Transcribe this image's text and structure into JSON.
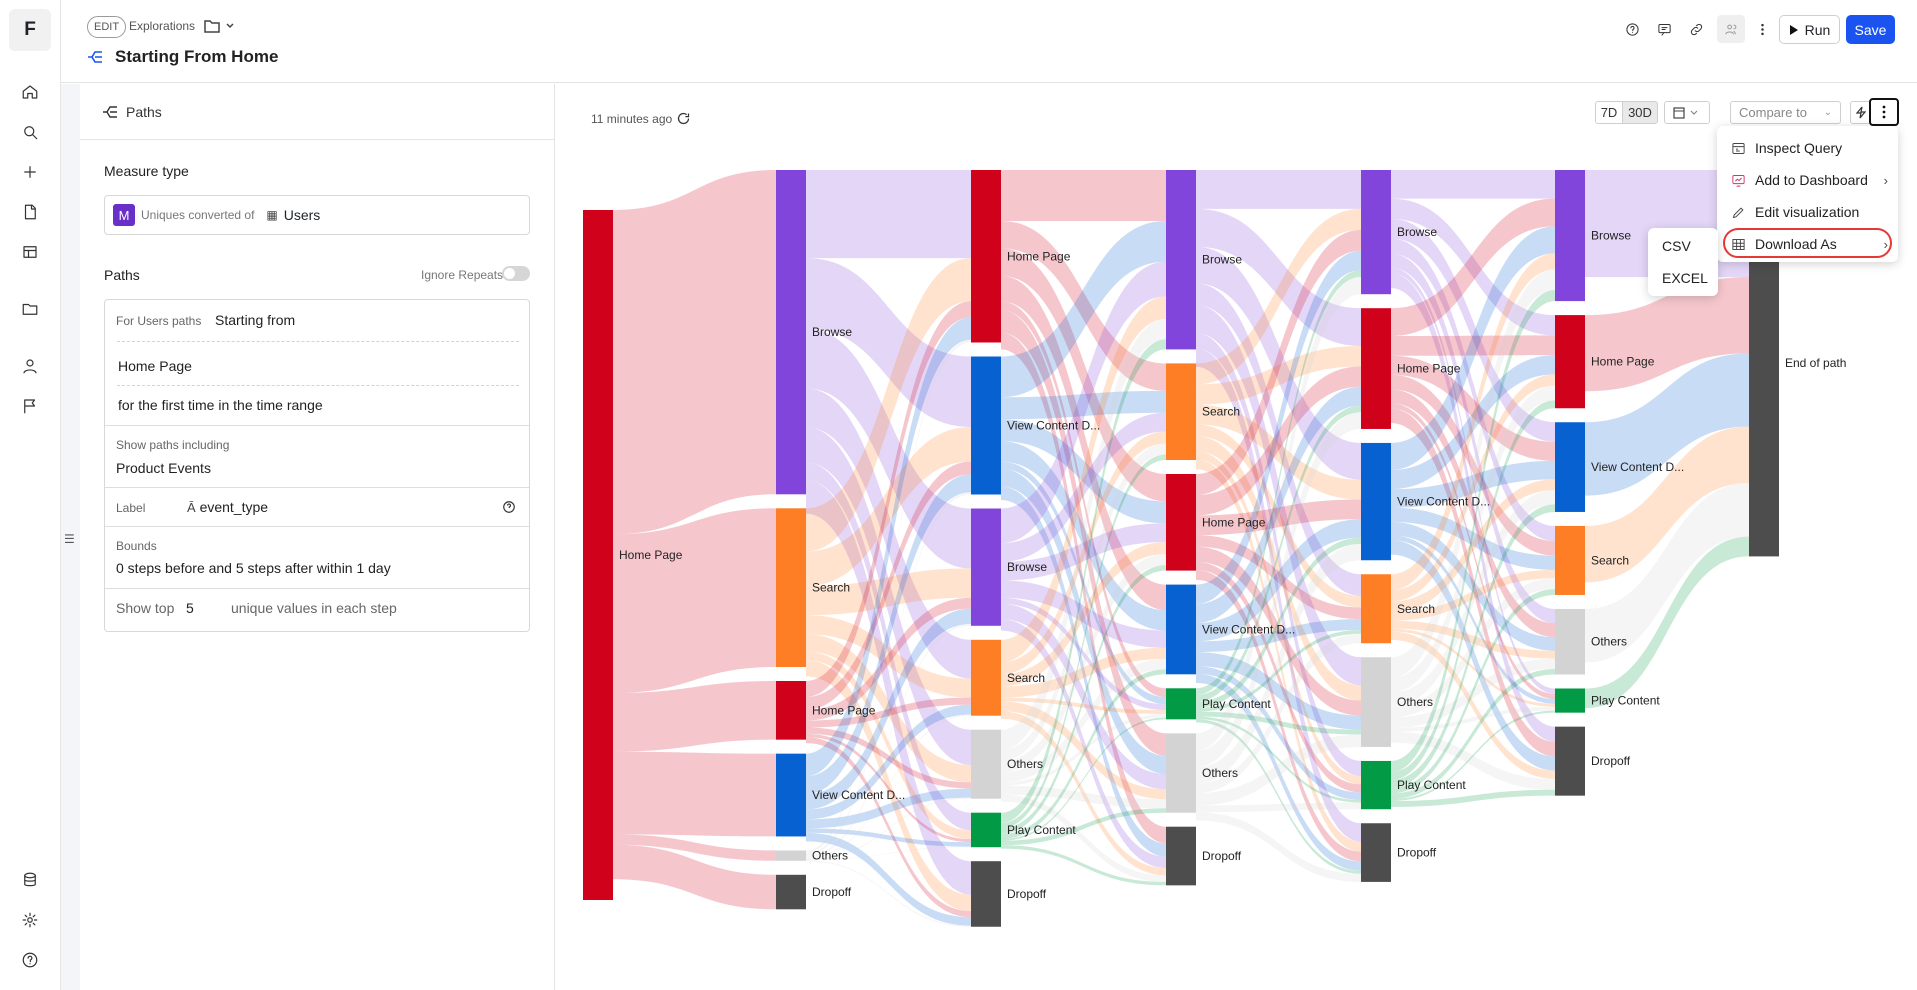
{
  "rail": {
    "logo": "F",
    "items": [
      "home-icon",
      "search-icon",
      "plus-icon",
      "document-icon",
      "board-icon",
      "folder-icon",
      "person-icon",
      "flag-icon"
    ],
    "bottom_items": [
      "database-icon",
      "gear-icon",
      "help-icon"
    ]
  },
  "header": {
    "edit_badge": "EDIT",
    "breadcrumb": "Explorations",
    "title": "Starting From Home",
    "run_label": "Run",
    "save_label": "Save"
  },
  "panel": {
    "header": "Paths",
    "measure_type_title": "Measure type",
    "measure_badge": "M",
    "measure_prefix": "Uniques converted of",
    "measure_value": "Users",
    "paths_title": "Paths",
    "ignore_repeats": "Ignore Repeats",
    "for_users_paths": "For Users paths",
    "starting_from": "Starting from",
    "start_event": "Home Page",
    "time_qualifier": "for the first time in the time range",
    "show_paths_including": "Show paths including",
    "product_events": "Product Events",
    "label_caption": "Label",
    "label_value": "event_type",
    "bounds_caption": "Bounds",
    "bounds_value": "0 steps before and 5 steps after within 1 day",
    "show_top_label": "Show top",
    "show_top_value": "5",
    "show_top_suffix": "unique values in each step"
  },
  "toolbar": {
    "updated": "11 minutes ago",
    "range_7d": "7D",
    "range_30d": "30D",
    "active_range": "30D",
    "compare_placeholder": "Compare to"
  },
  "menu": {
    "items": [
      "Inspect Query",
      "Add to Dashboard",
      "Edit visualization",
      "Download As"
    ],
    "submenu": [
      "CSV",
      "EXCEL"
    ]
  },
  "colors": {
    "Home Page": "#d0021b",
    "Browse": "#8245db",
    "Search": "#fd7e24",
    "View Content D...": "#0761d1",
    "Others": "#d3d3d3",
    "Play Content": "#029a45",
    "Dropoff": "#4d4d4d",
    "End of path": "#4d4d4d"
  },
  "chart_data": {
    "type": "sankey",
    "steps": [
      [
        {
          "label": "Home Page",
          "value": 100
        }
      ],
      [
        {
          "label": "Browse",
          "value": 47
        },
        {
          "label": "Search",
          "value": 23
        },
        {
          "label": "Home Page",
          "value": 8.5
        },
        {
          "label": "View Content D...",
          "value": 12
        },
        {
          "label": "Others",
          "value": 1.5
        },
        {
          "label": "Dropoff",
          "value": 5
        }
      ],
      [
        {
          "label": "Home Page",
          "value": 25
        },
        {
          "label": "View Content D...",
          "value": 20
        },
        {
          "label": "Browse",
          "value": 17
        },
        {
          "label": "Search",
          "value": 11
        },
        {
          "label": "Others",
          "value": 10
        },
        {
          "label": "Play Content",
          "value": 5
        },
        {
          "label": "Dropoff",
          "value": 9.5
        }
      ],
      [
        {
          "label": "Browse",
          "value": 26
        },
        {
          "label": "Search",
          "value": 14
        },
        {
          "label": "Home Page",
          "value": 14
        },
        {
          "label": "View Content D...",
          "value": 13
        },
        {
          "label": "Play Content",
          "value": 4.5
        },
        {
          "label": "Others",
          "value": 11.5
        },
        {
          "label": "Dropoff",
          "value": 8.5
        }
      ],
      [
        {
          "label": "Browse",
          "value": 18
        },
        {
          "label": "Home Page",
          "value": 17.5
        },
        {
          "label": "View Content D...",
          "value": 17
        },
        {
          "label": "Search",
          "value": 10
        },
        {
          "label": "Others",
          "value": 13
        },
        {
          "label": "Play Content",
          "value": 7
        },
        {
          "label": "Dropoff",
          "value": 8.5
        }
      ],
      [
        {
          "label": "Browse",
          "value": 19
        },
        {
          "label": "Home Page",
          "value": 13.5
        },
        {
          "label": "View Content D...",
          "value": 13
        },
        {
          "label": "Search",
          "value": 10
        },
        {
          "label": "Others",
          "value": 9.5
        },
        {
          "label": "Play Content",
          "value": 3.5
        },
        {
          "label": "Dropoff",
          "value": 10
        }
      ],
      [
        {
          "label": "End of path",
          "value": 56
        }
      ]
    ]
  }
}
